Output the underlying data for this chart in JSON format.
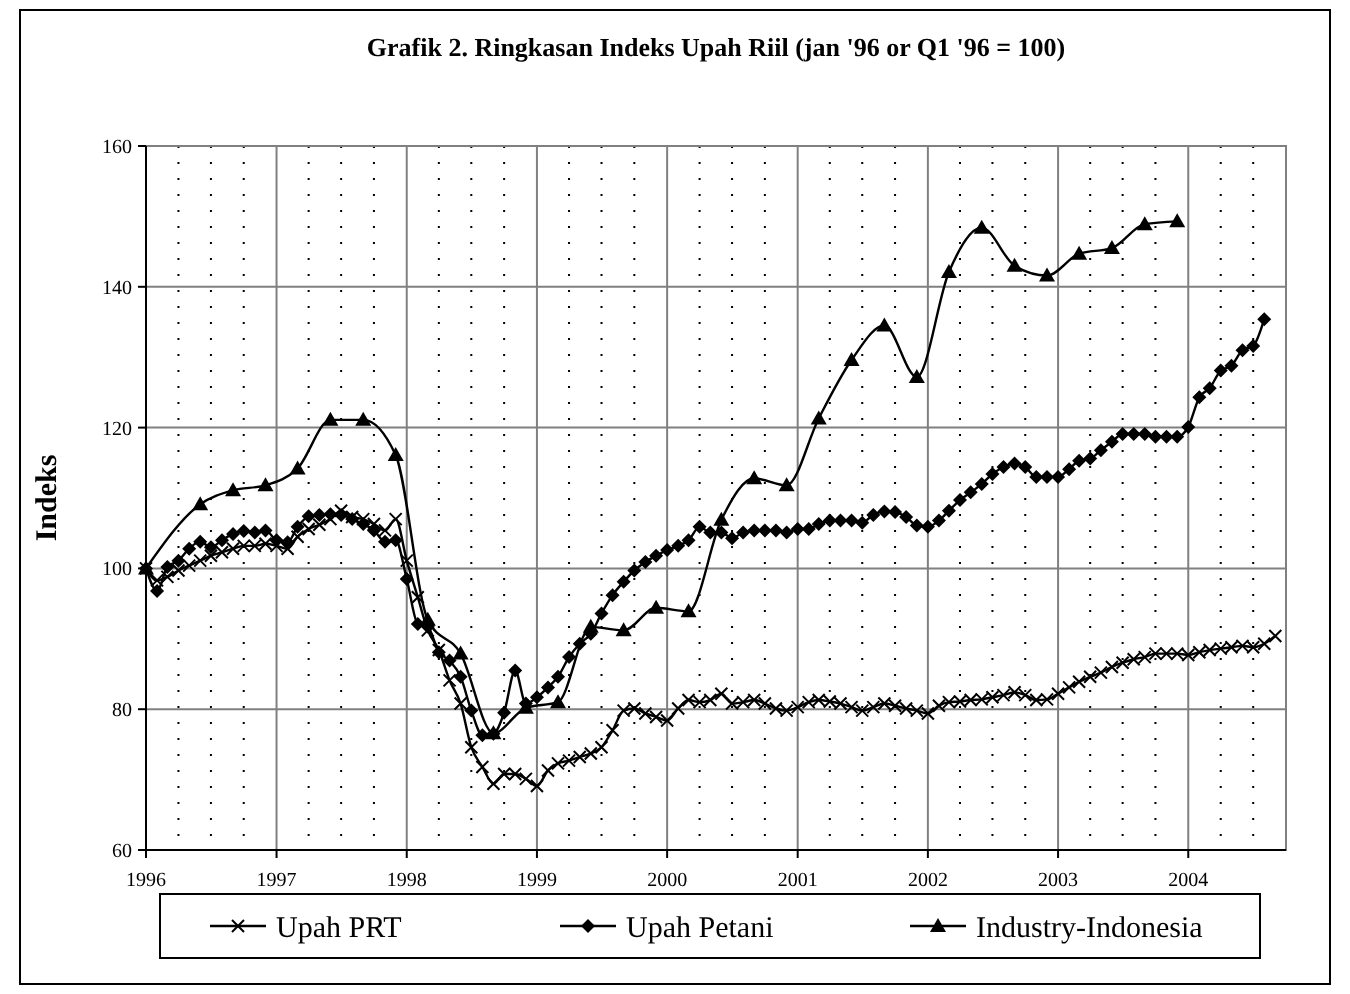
{
  "chart_data": {
    "type": "line",
    "title": "Grafik 2. Ringkasan Indeks Upah Riil (jan '96 or Q1 '96 = 100)",
    "ylabel": "Indeks",
    "xlim": [
      "1996-01",
      "2004-10"
    ],
    "xticks": [
      {
        "value": "1996",
        "label": "1996"
      },
      {
        "value": "1997",
        "label": "1997"
      },
      {
        "value": "1998",
        "label": "1998"
      },
      {
        "value": "1999",
        "label": "1999"
      },
      {
        "value": "2000",
        "label": "2000"
      },
      {
        "value": "2001",
        "label": "2001"
      },
      {
        "value": "2002",
        "label": "2002"
      },
      {
        "value": "2003",
        "label": "2003"
      },
      {
        "value": "2004",
        "label": "2004"
      }
    ],
    "ylim": [
      60,
      160
    ],
    "yticks": [
      60,
      80,
      100,
      120,
      140,
      160
    ],
    "grid": true,
    "legend": "bottom",
    "line_style": "solid",
    "series": [
      {
        "name": "Upah PRT",
        "color": "#000000",
        "marker": "cross",
        "x": [
          "1996-01",
          "1996-02",
          "1996-03",
          "1996-04",
          "1996-05",
          "1996-06",
          "1996-07",
          "1996-08",
          "1996-09",
          "1996-10",
          "1996-11",
          "1996-12",
          "1997-01",
          "1997-02",
          "1997-03",
          "1997-04",
          "1997-05",
          "1997-06",
          "1997-07",
          "1997-08",
          "1997-09",
          "1997-10",
          "1997-11",
          "1997-12",
          "1998-01",
          "1998-02",
          "1998-03",
          "1998-04",
          "1998-05",
          "1998-06",
          "1998-07",
          "1998-08",
          "1998-09",
          "1998-10",
          "1998-11",
          "1998-12",
          "1999-01",
          "1999-02",
          "1999-03",
          "1999-04",
          "1999-05",
          "1999-06",
          "1999-07",
          "1999-08",
          "1999-09",
          "1999-10",
          "1999-11",
          "1999-12",
          "2000-01",
          "2000-02",
          "2000-03",
          "2000-04",
          "2000-05",
          "2000-06",
          "2000-07",
          "2000-08",
          "2000-09",
          "2000-10",
          "2000-11",
          "2000-12",
          "2001-01",
          "2001-02",
          "2001-03",
          "2001-04",
          "2001-05",
          "2001-06",
          "2001-07",
          "2001-08",
          "2001-09",
          "2001-10",
          "2001-11",
          "2001-12",
          "2002-01",
          "2002-02",
          "2002-03",
          "2002-04",
          "2002-05",
          "2002-06",
          "2002-07",
          "2002-08",
          "2002-09",
          "2002-10",
          "2002-11",
          "2002-12",
          "2003-01",
          "2003-02",
          "2003-03",
          "2003-04",
          "2003-05",
          "2003-06",
          "2003-07",
          "2003-08",
          "2003-09",
          "2003-10",
          "2003-11",
          "2003-12",
          "2004-01",
          "2004-02",
          "2004-03",
          "2004-04",
          "2004-05",
          "2004-06",
          "2004-07",
          "2004-08",
          "2004-09"
        ],
        "values": [
          100,
          98.3,
          98.8,
          99.7,
          100.4,
          101.1,
          101.8,
          102.3,
          102.8,
          103.2,
          103.2,
          103.5,
          103.2,
          102.8,
          104.5,
          105.6,
          106.2,
          107,
          108.2,
          107.3,
          107,
          106.3,
          105.4,
          107,
          101.1,
          95.9,
          91.2,
          88.4,
          84.1,
          80.8,
          74.6,
          71.8,
          69.4,
          70.8,
          70.8,
          70.1,
          69.1,
          71.3,
          72.3,
          72.7,
          73.2,
          73.7,
          74.6,
          77,
          79.8,
          80.1,
          79.4,
          78.9,
          78.4,
          80.1,
          81.3,
          81,
          81.3,
          82.2,
          80.8,
          81,
          81.3,
          80.8,
          80.1,
          79.8,
          80.3,
          81,
          81.3,
          81.1,
          80.8,
          80.3,
          79.8,
          80.3,
          80.8,
          80.5,
          80.1,
          79.8,
          79.4,
          80.5,
          81,
          81.1,
          81.3,
          81.4,
          81.7,
          82,
          82.4,
          82,
          81.3,
          81.4,
          82.2,
          83.1,
          83.9,
          84.6,
          85.2,
          86,
          86.6,
          87.1,
          87.4,
          87.9,
          87.9,
          87.9,
          87.7,
          88.1,
          88.4,
          88.6,
          88.8,
          89,
          88.8,
          89.3,
          90.4
        ]
      },
      {
        "name": "Upah Petani",
        "color": "#000000",
        "marker": "diamond",
        "x": [
          "1996-01",
          "1996-02",
          "1996-03",
          "1996-04",
          "1996-05",
          "1996-06",
          "1996-07",
          "1996-08",
          "1996-09",
          "1996-10",
          "1996-11",
          "1996-12",
          "1997-01",
          "1997-02",
          "1997-03",
          "1997-04",
          "1997-05",
          "1997-06",
          "1997-07",
          "1997-08",
          "1997-09",
          "1997-10",
          "1997-11",
          "1997-12",
          "1998-01",
          "1998-02",
          "1998-03",
          "1998-04",
          "1998-05",
          "1998-06",
          "1998-07",
          "1998-08",
          "1998-09",
          "1998-10",
          "1998-11",
          "1998-12",
          "1999-01",
          "1999-02",
          "1999-03",
          "1999-04",
          "1999-05",
          "1999-06",
          "1999-07",
          "1999-08",
          "1999-09",
          "1999-10",
          "1999-11",
          "1999-12",
          "2000-01",
          "2000-02",
          "2000-03",
          "2000-04",
          "2000-05",
          "2000-06",
          "2000-07",
          "2000-08",
          "2000-09",
          "2000-10",
          "2000-11",
          "2000-12",
          "2001-01",
          "2001-02",
          "2001-03",
          "2001-04",
          "2001-05",
          "2001-06",
          "2001-07",
          "2001-08",
          "2001-09",
          "2001-10",
          "2001-11",
          "2001-12",
          "2002-01",
          "2002-02",
          "2002-03",
          "2002-04",
          "2002-05",
          "2002-06",
          "2002-07",
          "2002-08",
          "2002-09",
          "2002-10",
          "2002-11",
          "2002-12",
          "2003-01",
          "2003-02",
          "2003-03",
          "2003-04",
          "2003-05",
          "2003-06",
          "2003-07",
          "2003-08",
          "2003-09",
          "2003-10",
          "2003-11",
          "2003-12",
          "2004-01",
          "2004-02",
          "2004-03",
          "2004-04",
          "2004-05",
          "2004-06",
          "2004-07",
          "2004-08"
        ],
        "values": [
          100,
          96.8,
          100.2,
          101.1,
          102.8,
          103.8,
          103,
          104,
          104.9,
          105.3,
          105.1,
          105.4,
          104,
          103.7,
          105.9,
          107.4,
          107.6,
          107.7,
          107.6,
          107,
          106.3,
          105.4,
          103.8,
          104,
          98.5,
          92.1,
          91.7,
          88.1,
          86.9,
          84.6,
          79.8,
          76.3,
          76.5,
          79.5,
          85.5,
          80.8,
          81.7,
          83.1,
          84.6,
          87.4,
          89.3,
          90.7,
          93.6,
          96.2,
          98.1,
          99.7,
          100.9,
          101.8,
          102.6,
          103.2,
          104,
          105.9,
          105.1,
          105.1,
          104.3,
          105.1,
          105.4,
          105.4,
          105.4,
          105.1,
          105.6,
          105.6,
          106.3,
          106.8,
          106.8,
          106.8,
          106.5,
          107.6,
          108.1,
          108,
          107.3,
          106.1,
          105.9,
          106.8,
          108.2,
          109.7,
          110.8,
          112,
          113.4,
          114.4,
          114.9,
          114.4,
          113,
          113,
          113,
          114.1,
          115.3,
          115.6,
          116.8,
          118,
          119.1,
          119.1,
          119.1,
          118.7,
          118.7,
          118.7,
          120.1,
          124.3,
          125.6,
          128.1,
          128.8,
          131,
          131.6,
          135.4
        ]
      },
      {
        "name": "Industry-Indonesia",
        "color": "#000000",
        "marker": "triangle",
        "x": [
          "1996-01",
          "1996-06",
          "1996-09",
          "1996-12",
          "1997-03",
          "1997-06",
          "1997-09",
          "1997-12",
          "1998-03",
          "1998-06",
          "1998-09",
          "1998-12",
          "1999-03",
          "1999-06",
          "1999-09",
          "1999-12",
          "2000-03",
          "2000-06",
          "2000-09",
          "2000-12",
          "2001-03",
          "2001-06",
          "2001-09",
          "2001-12",
          "2002-03",
          "2002-06",
          "2002-09",
          "2002-12",
          "2003-03",
          "2003-06",
          "2003-09",
          "2003-12"
        ],
        "values": [
          100,
          109.1,
          111.1,
          111.8,
          114.2,
          121.1,
          121.1,
          116.1,
          92.7,
          87.9,
          76.6,
          80.2,
          81,
          91.7,
          91.2,
          94.4,
          93.9,
          106.9,
          112.8,
          111.8,
          121.3,
          129.6,
          134.5,
          127.2,
          142.1,
          148.4,
          143,
          141.6,
          144.7,
          145.5,
          148.9,
          149.3
        ]
      }
    ]
  }
}
